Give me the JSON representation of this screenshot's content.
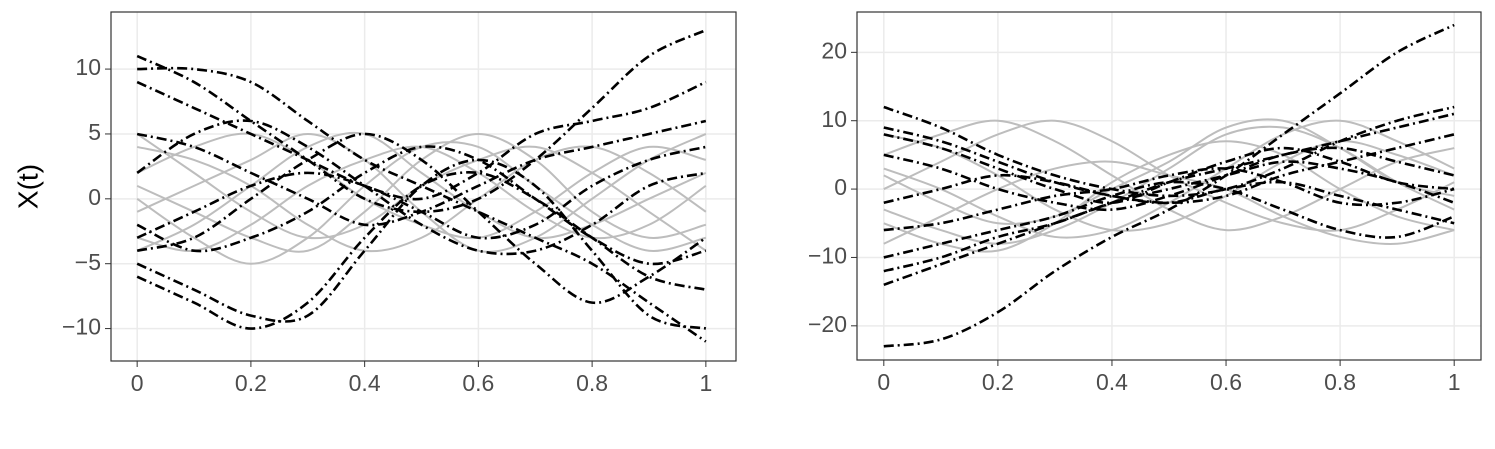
{
  "chart_data": [
    {
      "type": "line",
      "y_label": "X(t)",
      "x": [
        0,
        0.1,
        0.2,
        0.3,
        0.4,
        0.5,
        0.6,
        0.7,
        0.8,
        0.9,
        1
      ],
      "xlim": [
        -0.046,
        1.053
      ],
      "ylim": [
        -12.5,
        14.4
      ],
      "xticks": [
        0,
        0.2,
        0.4,
        0.6,
        0.8,
        1
      ],
      "yticks": [
        {
          "value": -10,
          "label": "−10"
        },
        {
          "value": -5,
          "label": "−5"
        },
        0,
        5,
        10
      ],
      "grid": true,
      "series": [
        {
          "color": "#bdbdbd",
          "dash": "solid",
          "values": [
            4,
            3,
            1,
            -2,
            -4,
            -3,
            0,
            3,
            4,
            2,
            -1
          ]
        },
        {
          "color": "#bdbdbd",
          "dash": "solid",
          "values": [
            -3,
            -4,
            -2,
            1,
            3,
            4,
            2,
            -1,
            -3,
            -2,
            1
          ]
        },
        {
          "color": "#bdbdbd",
          "dash": "solid",
          "values": [
            2,
            4,
            5,
            3,
            0,
            -2,
            -3,
            -1,
            2,
            4,
            3
          ]
        },
        {
          "color": "#bdbdbd",
          "dash": "solid",
          "values": [
            -4,
            -2,
            1,
            4,
            5,
            2,
            -1,
            -3,
            -2,
            0,
            2
          ]
        },
        {
          "color": "#bdbdbd",
          "dash": "solid",
          "values": [
            0,
            -3,
            -5,
            -3,
            1,
            4,
            4,
            1,
            -2,
            -4,
            -3
          ]
        },
        {
          "color": "#bdbdbd",
          "dash": "solid",
          "values": [
            5,
            2,
            -1,
            -3,
            -2,
            1,
            3,
            4,
            2,
            -1,
            -4
          ]
        },
        {
          "color": "#bdbdbd",
          "dash": "solid",
          "values": [
            -1,
            1,
            3,
            5,
            3,
            -1,
            -4,
            -3,
            0,
            3,
            5
          ]
        },
        {
          "color": "#bdbdbd",
          "dash": "solid",
          "values": [
            1,
            -1,
            -3,
            -4,
            -1,
            3,
            5,
            3,
            -1,
            -3,
            -2
          ]
        },
        {
          "color": "#000000",
          "dash": "dashdot",
          "values": [
            11,
            9,
            6,
            3,
            0,
            -1,
            0,
            3,
            7,
            11,
            13
          ]
        },
        {
          "color": "#000000",
          "dash": "dashdot",
          "values": [
            10,
            10,
            9,
            6,
            3,
            1,
            -1,
            -3,
            -5,
            -8,
            -11
          ]
        },
        {
          "color": "#000000",
          "dash": "dashdot",
          "values": [
            -6,
            -8,
            -10,
            -8,
            -3,
            1,
            2,
            0,
            -3,
            -6,
            -7
          ]
        },
        {
          "color": "#000000",
          "dash": "dashdot",
          "values": [
            -5,
            -7,
            -9,
            -9,
            -4,
            1,
            3,
            1,
            -4,
            -9,
            -10
          ]
        },
        {
          "color": "#000000",
          "dash": "dashdot",
          "values": [
            9,
            7,
            5,
            3,
            1,
            0,
            2,
            5,
            6,
            7,
            9
          ]
        },
        {
          "color": "#000000",
          "dash": "dashdot",
          "values": [
            -4,
            -3,
            0,
            3,
            5,
            3,
            -1,
            -5,
            -8,
            -6,
            -3
          ]
        },
        {
          "color": "#000000",
          "dash": "dashdot",
          "values": [
            5,
            4,
            2,
            0,
            -2,
            -1,
            1,
            3,
            4,
            5,
            6
          ]
        },
        {
          "color": "#000000",
          "dash": "dashdot",
          "values": [
            -3,
            -1,
            1,
            2,
            1,
            -1,
            -3,
            -2,
            1,
            3,
            4
          ]
        },
        {
          "color": "#000000",
          "dash": "dashdot",
          "values": [
            2,
            5,
            6,
            4,
            1,
            -2,
            -4,
            -4,
            -2,
            1,
            2
          ]
        },
        {
          "color": "#000000",
          "dash": "dashdot",
          "values": [
            -2,
            -4,
            -3,
            -1,
            2,
            4,
            3,
            0,
            -3,
            -5,
            -4
          ]
        }
      ]
    },
    {
      "type": "line",
      "x": [
        0,
        0.1,
        0.2,
        0.3,
        0.4,
        0.5,
        0.6,
        0.7,
        0.8,
        0.9,
        1
      ],
      "xlim": [
        -0.047,
        1.047
      ],
      "ylim": [
        -25,
        25.9
      ],
      "xticks": [
        0,
        0.2,
        0.4,
        0.6,
        0.8,
        1
      ],
      "yticks": [
        {
          "value": -20,
          "label": "−20"
        },
        {
          "value": -10,
          "label": "−10"
        },
        0,
        10,
        20
      ],
      "grid": true,
      "series": [
        {
          "color": "#bdbdbd",
          "dash": "solid",
          "values": [
            5,
            8,
            10,
            7,
            2,
            -3,
            -6,
            -4,
            0,
            4,
            6
          ]
        },
        {
          "color": "#bdbdbd",
          "dash": "solid",
          "values": [
            -5,
            -8,
            -9,
            -5,
            1,
            5,
            7,
            5,
            0,
            -4,
            -6
          ]
        },
        {
          "color": "#bdbdbd",
          "dash": "solid",
          "values": [
            0,
            4,
            8,
            10,
            7,
            2,
            -2,
            -5,
            -6,
            -3,
            1
          ]
        },
        {
          "color": "#bdbdbd",
          "dash": "solid",
          "values": [
            3,
            0,
            -4,
            -7,
            -6,
            -2,
            3,
            8,
            10,
            7,
            3
          ]
        },
        {
          "color": "#bdbdbd",
          "dash": "solid",
          "values": [
            -3,
            -6,
            -8,
            -6,
            -2,
            3,
            8,
            9,
            6,
            1,
            -3
          ]
        },
        {
          "color": "#bdbdbd",
          "dash": "solid",
          "values": [
            8,
            6,
            2,
            -3,
            -6,
            -5,
            -1,
            4,
            7,
            5,
            2
          ]
        },
        {
          "color": "#bdbdbd",
          "dash": "solid",
          "values": [
            -8,
            -4,
            0,
            3,
            4,
            2,
            0,
            -4,
            -7,
            -8,
            -6
          ]
        },
        {
          "color": "#bdbdbd",
          "dash": "solid",
          "values": [
            2,
            -2,
            -5,
            -4,
            0,
            4,
            9,
            10,
            6,
            1,
            -1
          ]
        },
        {
          "color": "#000000",
          "dash": "dashdot",
          "values": [
            -23,
            -22,
            -18,
            -12,
            -7,
            -3,
            2,
            8,
            14,
            20,
            24
          ]
        },
        {
          "color": "#000000",
          "dash": "dashdot",
          "values": [
            12,
            9,
            5,
            2,
            0,
            -1,
            0,
            3,
            7,
            10,
            12
          ]
        },
        {
          "color": "#000000",
          "dash": "dashdot",
          "values": [
            -14,
            -11,
            -8,
            -5,
            -2,
            1,
            3,
            5,
            7,
            9,
            11
          ]
        },
        {
          "color": "#000000",
          "dash": "dashdot",
          "values": [
            -12,
            -10,
            -7,
            -5,
            -2,
            0,
            2,
            4,
            3,
            1,
            -2
          ]
        },
        {
          "color": "#000000",
          "dash": "dashdot",
          "values": [
            9,
            7,
            4,
            1,
            -1,
            -2,
            -1,
            2,
            4,
            6,
            8
          ]
        },
        {
          "color": "#000000",
          "dash": "dashdot",
          "values": [
            -10,
            -8,
            -6,
            -4,
            -1,
            1,
            0,
            -3,
            -6,
            -7,
            -4
          ]
        },
        {
          "color": "#000000",
          "dash": "dashdot",
          "values": [
            5,
            3,
            0,
            -2,
            -3,
            -1,
            2,
            5,
            6,
            4,
            2
          ]
        },
        {
          "color": "#000000",
          "dash": "dashdot",
          "values": [
            -2,
            0,
            2,
            1,
            -1,
            -2,
            0,
            1,
            -1,
            -3,
            -5
          ]
        },
        {
          "color": "#000000",
          "dash": "dashdot",
          "values": [
            8,
            6,
            3,
            0,
            -2,
            1,
            4,
            6,
            4,
            1,
            0
          ]
        },
        {
          "color": "#000000",
          "dash": "dashdot",
          "values": [
            -6,
            -5,
            -3,
            -1,
            0,
            2,
            3,
            1,
            -2,
            -2,
            0
          ]
        }
      ]
    }
  ]
}
